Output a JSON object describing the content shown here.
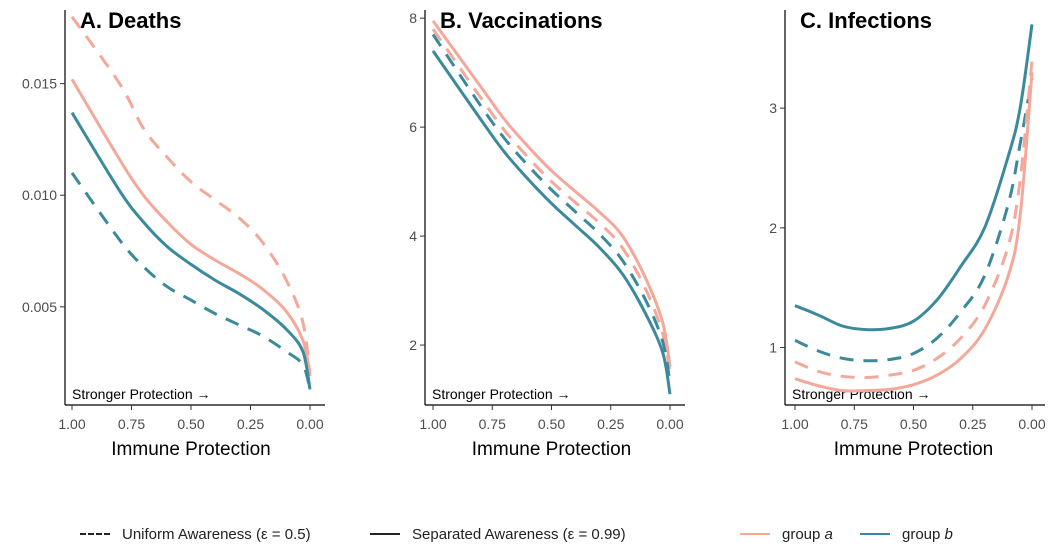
{
  "colors": {
    "group_a": "#f4a89a",
    "group_b": "#3a8a9c"
  },
  "annotation": "Stronger Protection →",
  "legend": {
    "uniform_label": "Uniform Awareness (ε = 0.5)",
    "separated_label": "Separated Awareness (ε = 0.99)",
    "group_a_prefix": "group ",
    "group_a_name": "a",
    "group_b_prefix": "group ",
    "group_b_name": "b"
  },
  "chart_data": [
    {
      "type": "line",
      "title": "A. Deaths",
      "xlabel": "Immune Protection",
      "ylabel": "",
      "x_reversed": true,
      "xlim": [
        1.0,
        0.0
      ],
      "ylim": [
        0.0006,
        0.0183
      ],
      "xticks": [
        1.0,
        0.75,
        0.5,
        0.25,
        0.0
      ],
      "xtick_labels": [
        "1.00",
        "0.75",
        "0.50",
        "0.25",
        "0.00"
      ],
      "yticks": [
        0.005,
        0.01,
        0.015
      ],
      "ytick_labels": [
        "0.005",
        "0.010",
        "0.015"
      ],
      "x": [
        1.0,
        0.8,
        0.7,
        0.6,
        0.5,
        0.4,
        0.3,
        0.2,
        0.1,
        0.03,
        0.0
      ],
      "series": [
        {
          "group": "a",
          "awareness": "uniform",
          "values": [
            0.018,
            0.015,
            0.013,
            0.0117,
            0.0106,
            0.0098,
            0.009,
            0.0079,
            0.0062,
            0.0043,
            0.0019
          ]
        },
        {
          "group": "a",
          "awareness": "separated",
          "values": [
            0.0152,
            0.0116,
            0.01,
            0.0088,
            0.0078,
            0.0071,
            0.0065,
            0.0058,
            0.0048,
            0.0035,
            0.002
          ]
        },
        {
          "group": "b",
          "awareness": "separated",
          "values": [
            0.0137,
            0.0102,
            0.0088,
            0.0077,
            0.0069,
            0.0062,
            0.0056,
            0.0049,
            0.004,
            0.003,
            0.0013
          ]
        },
        {
          "group": "b",
          "awareness": "uniform",
          "values": [
            0.011,
            0.008,
            0.0068,
            0.0059,
            0.0053,
            0.0047,
            0.0042,
            0.0037,
            0.003,
            0.0024,
            0.0013
          ]
        }
      ]
    },
    {
      "type": "line",
      "title": "B. Vaccinations",
      "xlabel": "Immune Protection",
      "ylabel": "",
      "x_reversed": true,
      "xlim": [
        1.0,
        0.0
      ],
      "ylim": [
        0.9,
        8.15
      ],
      "xticks": [
        1.0,
        0.75,
        0.5,
        0.25,
        0.0
      ],
      "xtick_labels": [
        "1.00",
        "0.75",
        "0.50",
        "0.25",
        "0.00"
      ],
      "yticks": [
        2,
        4,
        6,
        8
      ],
      "ytick_labels": [
        "2",
        "4",
        "6",
        "8"
      ],
      "x": [
        1.0,
        0.8,
        0.7,
        0.6,
        0.5,
        0.4,
        0.3,
        0.2,
        0.1,
        0.03,
        0.0
      ],
      "series": [
        {
          "group": "a",
          "awareness": "separated",
          "values": [
            7.95,
            6.75,
            6.15,
            5.65,
            5.2,
            4.82,
            4.45,
            4.0,
            3.2,
            2.4,
            1.6
          ]
        },
        {
          "group": "a",
          "awareness": "uniform",
          "values": [
            7.8,
            6.55,
            5.95,
            5.45,
            5.0,
            4.62,
            4.25,
            3.78,
            3.0,
            2.2,
            1.5
          ]
        },
        {
          "group": "b",
          "awareness": "uniform",
          "values": [
            7.7,
            6.4,
            5.8,
            5.3,
            4.85,
            4.45,
            4.05,
            3.55,
            2.8,
            2.05,
            1.3
          ]
        },
        {
          "group": "b",
          "awareness": "separated",
          "values": [
            7.4,
            6.15,
            5.55,
            5.05,
            4.6,
            4.2,
            3.8,
            3.3,
            2.55,
            1.85,
            1.1
          ]
        }
      ]
    },
    {
      "type": "line",
      "title": "C. Infections",
      "xlabel": "Immune Protection",
      "ylabel": "",
      "x_reversed": true,
      "xlim": [
        1.0,
        0.0
      ],
      "ylim": [
        0.52,
        3.82
      ],
      "xticks": [
        1.0,
        0.75,
        0.5,
        0.25,
        0.0
      ],
      "xtick_labels": [
        "1.00",
        "0.75",
        "0.50",
        "0.25",
        "0.00"
      ],
      "yticks": [
        1,
        2,
        3
      ],
      "ytick_labels": [
        "1",
        "2",
        "3"
      ],
      "x": [
        1.0,
        0.9,
        0.8,
        0.7,
        0.6,
        0.5,
        0.4,
        0.3,
        0.2,
        0.1,
        0.05,
        0.0
      ],
      "series": [
        {
          "group": "b",
          "awareness": "separated",
          "values": [
            1.35,
            1.27,
            1.18,
            1.15,
            1.16,
            1.22,
            1.4,
            1.68,
            2.0,
            2.6,
            3.0,
            3.7
          ]
        },
        {
          "group": "b",
          "awareness": "uniform",
          "values": [
            1.06,
            0.97,
            0.91,
            0.89,
            0.9,
            0.95,
            1.08,
            1.3,
            1.6,
            2.2,
            2.7,
            3.25
          ]
        },
        {
          "group": "a",
          "awareness": "uniform",
          "values": [
            0.88,
            0.8,
            0.76,
            0.75,
            0.77,
            0.81,
            0.91,
            1.08,
            1.35,
            1.85,
            2.4,
            3.4
          ]
        },
        {
          "group": "a",
          "awareness": "separated",
          "values": [
            0.74,
            0.68,
            0.64,
            0.64,
            0.65,
            0.69,
            0.77,
            0.91,
            1.15,
            1.6,
            2.1,
            3.3
          ]
        }
      ]
    }
  ]
}
